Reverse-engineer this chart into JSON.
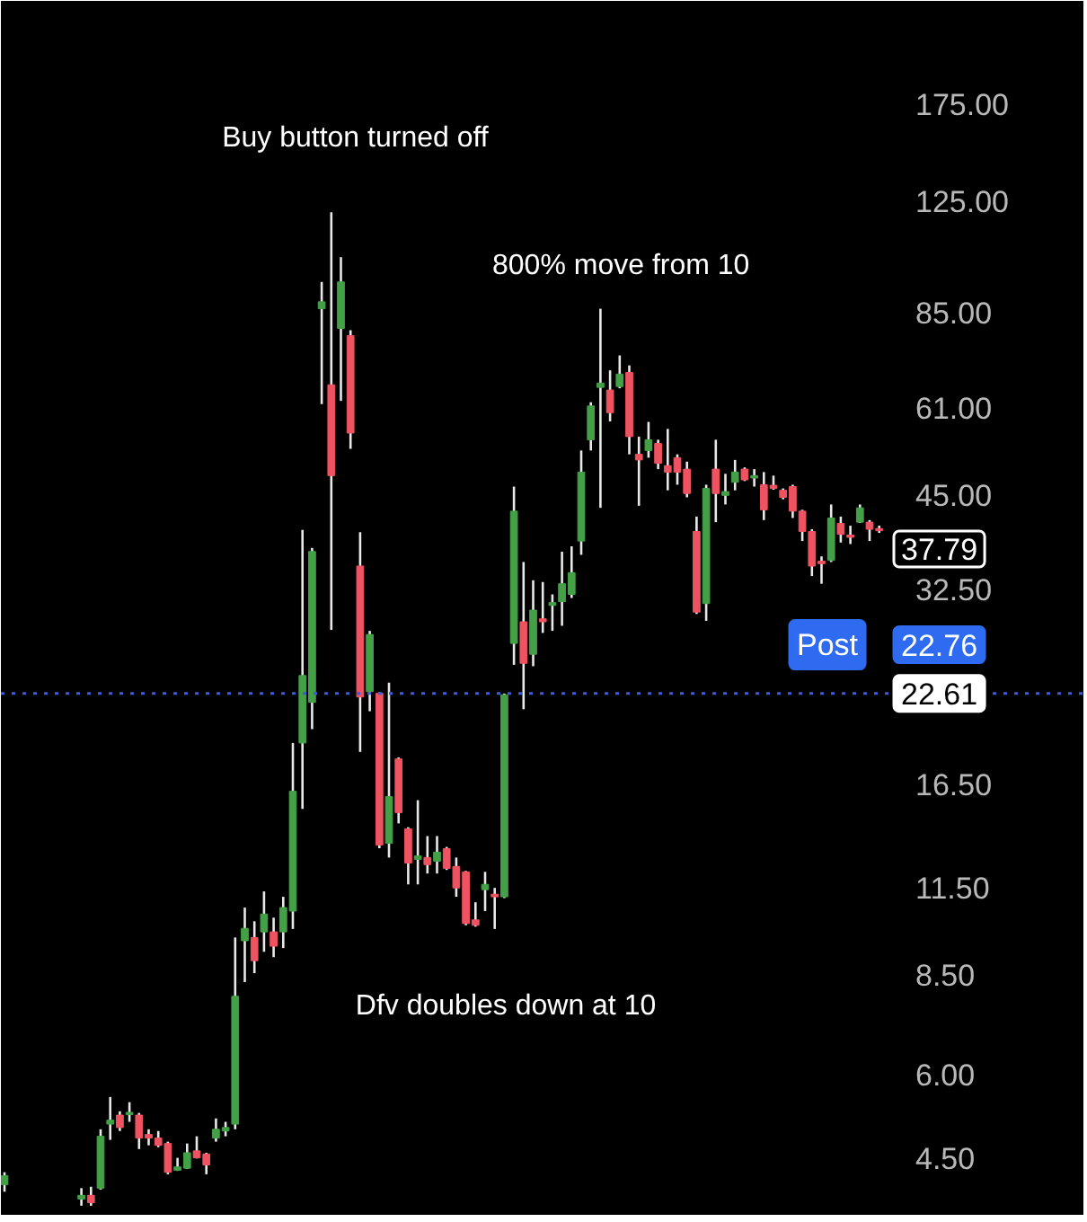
{
  "chart_data": {
    "type": "candlestick",
    "log": true,
    "categories": [
      null,
      null,
      null,
      null,
      null,
      null,
      null,
      null,
      null,
      null,
      null,
      null,
      null,
      null,
      null,
      null,
      null,
      null,
      null,
      null,
      null,
      null,
      null,
      null,
      null,
      null,
      null,
      null,
      null,
      null,
      null,
      null,
      null,
      null,
      null,
      null,
      null,
      null,
      null,
      null,
      null,
      null,
      null,
      null,
      null,
      null,
      null,
      null,
      null,
      null,
      null,
      null,
      null,
      null,
      null,
      null,
      null,
      null,
      null,
      null,
      null,
      null,
      null,
      null,
      null,
      null,
      null,
      null,
      null,
      null,
      null,
      null,
      null,
      null,
      null,
      null,
      null,
      null,
      null,
      null,
      null,
      null,
      null,
      null,
      null,
      null,
      null,
      null,
      null,
      null,
      null,
      null
    ],
    "ohlc": [
      [
        4.1,
        4.28,
        4.0,
        4.23
      ],
      null,
      null,
      null,
      null,
      null,
      null,
      null,
      [
        3.9,
        4.05,
        3.81,
        3.95
      ],
      [
        3.95,
        4.07,
        3.81,
        3.85
      ],
      [
        4.05,
        4.97,
        4.03,
        4.85
      ],
      [
        5.06,
        5.56,
        4.79,
        5.13
      ],
      [
        5.22,
        5.29,
        4.94,
        5.0
      ],
      [
        5.23,
        5.46,
        5.1,
        5.27
      ],
      [
        5.22,
        5.26,
        4.64,
        4.82
      ],
      [
        4.88,
        4.97,
        4.7,
        4.82
      ],
      [
        4.82,
        4.94,
        4.67,
        4.7
      ],
      [
        4.73,
        4.76,
        4.25,
        4.28
      ],
      [
        4.31,
        4.5,
        4.3,
        4.36
      ],
      [
        4.34,
        4.73,
        4.33,
        4.58
      ],
      [
        4.61,
        4.85,
        4.49,
        4.5
      ],
      [
        4.56,
        4.58,
        4.25,
        4.39
      ],
      [
        4.82,
        5.16,
        4.76,
        4.97
      ],
      [
        4.94,
        5.1,
        4.85,
        5.0
      ],
      [
        5.06,
        9.68,
        4.97,
        7.89
      ],
      [
        9.57,
        10.74,
        8.29,
        9.99
      ],
      [
        9.68,
        10.24,
        8.55,
        8.93
      ],
      [
        9.87,
        11.36,
        9.21,
        10.5
      ],
      [
        9.87,
        10.37,
        9.04,
        9.39
      ],
      [
        9.87,
        11.15,
        9.33,
        10.74
      ],
      [
        10.61,
        19.03,
        9.97,
        16.09
      ],
      [
        19.03,
        39.9,
        15.13,
        24.06
      ],
      [
        21.92,
        37.49,
        19.97,
        37.03
      ],
      [
        86.1,
        94.5,
        61.8,
        88.2
      ],
      [
        66.1,
        120.4,
        28.2,
        48.2
      ],
      [
        80.4,
        103.0,
        62.5,
        94.5
      ],
      [
        78.4,
        79.9,
        52.9,
        55.9
      ],
      [
        35.2,
        39.6,
        18.45,
        22.33
      ],
      [
        22.75,
        28.1,
        21.25,
        27.75
      ],
      [
        22.61,
        22.7,
        13.2,
        13.35
      ],
      [
        13.43,
        23.47,
        12.78,
        15.8
      ],
      [
        18.0,
        18.1,
        14.39,
        14.94
      ],
      [
        14.12,
        14.2,
        11.64,
        12.54
      ],
      [
        12.7,
        15.6,
        11.64,
        12.85
      ],
      [
        12.78,
        13.77,
        12.09,
        12.47
      ],
      [
        12.62,
        13.77,
        12.09,
        13.02
      ],
      [
        13.18,
        13.26,
        12.24,
        12.31
      ],
      [
        12.39,
        12.78,
        11.15,
        11.5
      ],
      [
        12.16,
        12.2,
        10.1,
        10.16
      ],
      [
        10.29,
        10.94,
        10.05,
        10.1
      ],
      [
        11.43,
        12.16,
        10.61,
        11.64
      ],
      [
        11.25,
        11.5,
        9.97,
        11.15
      ],
      [
        11.15,
        22.6,
        11.1,
        22.5
      ],
      [
        26.9,
        46.4,
        24.97,
        42.6
      ],
      [
        29.0,
        35.7,
        21.4,
        25.1
      ],
      [
        25.9,
        33.5,
        24.85,
        30.2
      ],
      [
        29.3,
        33.3,
        27.9,
        29.0
      ],
      [
        30.7,
        31.9,
        28.1,
        31.0
      ],
      [
        31.1,
        37.0,
        28.6,
        33.1
      ],
      [
        31.9,
        37.7,
        31.5,
        34.4
      ],
      [
        38.4,
        52.6,
        36.6,
        48.8
      ],
      [
        54.6,
        62.2,
        52.6,
        61.4
      ],
      [
        65.5,
        86.1,
        43.1,
        66.5
      ],
      [
        64.9,
        69.5,
        58.2,
        60.0
      ],
      [
        65.7,
        73.2,
        65.3,
        68.6
      ],
      [
        69.0,
        70.7,
        51.9,
        55.2
      ],
      [
        51.9,
        55.2,
        43.4,
        50.9
      ],
      [
        52.6,
        58.1,
        51.3,
        54.6
      ],
      [
        53.9,
        54.6,
        49.3,
        50.3
      ],
      [
        49.9,
        56.7,
        45.8,
        48.8
      ],
      [
        51.3,
        51.9,
        46.7,
        48.8
      ],
      [
        49.3,
        50.6,
        44.7,
        45.3
      ],
      [
        39.7,
        41.8,
        29.8,
        30.0
      ],
      [
        30.9,
        46.7,
        29.1,
        46.1
      ],
      [
        49.3,
        54.6,
        41.0,
        45.3
      ],
      [
        45.0,
        48.5,
        43.6,
        45.6
      ],
      [
        47.1,
        50.9,
        45.8,
        48.8
      ],
      [
        49.3,
        49.6,
        47.3,
        47.5
      ],
      [
        47.8,
        49.3,
        46.4,
        48.2
      ],
      [
        46.7,
        48.8,
        41.3,
        42.8
      ],
      [
        46.6,
        48.2,
        45.9,
        46.1
      ],
      [
        45.8,
        46.1,
        44.4,
        44.7
      ],
      [
        46.4,
        46.7,
        41.6,
        42.6
      ],
      [
        42.6,
        42.8,
        38.4,
        39.7
      ],
      [
        39.7,
        40.0,
        34.0,
        35.2
      ],
      [
        35.8,
        36.4,
        33.1,
        35.5
      ],
      [
        35.9,
        43.6,
        35.7,
        41.6
      ],
      [
        40.8,
        41.8,
        38.2,
        39.3
      ],
      [
        39.2,
        40.5,
        38.0,
        38.9
      ],
      [
        41.0,
        43.6,
        40.9,
        43.1
      ],
      [
        41.0,
        41.3,
        38.4,
        40.0
      ],
      [
        40.1,
        40.5,
        39.5,
        39.8
      ]
    ],
    "colors": [
      "#43a047",
      null,
      null,
      null,
      null,
      null,
      null,
      null,
      "#43a047",
      "#ef5361",
      "#43a047",
      "#43a047",
      "#ef5361",
      "#43a047",
      "#ef5361",
      "#ef5361",
      "#ef5361",
      "#ef5361",
      "#43a047",
      "#43a047",
      "#ef5361",
      "#ef5361",
      "#43a047",
      "#43a047",
      "#43a047",
      "#43a047",
      "#ef5361",
      "#43a047",
      "#ef5361",
      "#43a047",
      "#43a047",
      "#43a047",
      "#43a047",
      "#43a047",
      "#ef5361",
      "#43a047",
      "#ef5361",
      "#ef5361",
      "#43a047",
      "#ef5361",
      "#43a047",
      "#ef5361",
      "#ef5361",
      "#43a047",
      "#ef5361",
      "#43a047",
      "#ef5361",
      "#ef5361",
      "#ef5361",
      "#ef5361",
      "#43a047",
      "#ef5361",
      "#43a047",
      "#43a047",
      "#ef5361",
      "#43a047",
      "#ef5361",
      "#43a047",
      "#43a047",
      "#43a047",
      "#43a047",
      "#43a047",
      "#43a047",
      "#ef5361",
      "#43a047",
      "#ef5361",
      "#ef5361",
      "#43a047",
      "#ef5361",
      "#ef5361",
      "#ef5361",
      "#ef5361",
      "#ef5361",
      "#43a047",
      "#ef5361",
      "#43a047",
      "#43a047",
      "#ef5361",
      "#43a047",
      "#ef5361",
      "#ef5361",
      "#ef5361",
      "#ef5361",
      "#ef5361",
      "#ef5361",
      "#ef5361",
      "#43a047",
      "#ef5361",
      "#ef5361",
      "#43a047",
      "#ef5361",
      "#ef5361"
    ],
    "ylim": [
      3.68,
      251
    ],
    "yticks": [
      {
        "value": 4.5,
        "label": "4.50"
      },
      {
        "value": 6,
        "label": "6.00"
      },
      {
        "value": 8.5,
        "label": "8.50"
      },
      {
        "value": 11.5,
        "label": "11.50"
      },
      {
        "value": 16.5,
        "label": "16.50"
      },
      {
        "value": 32.5,
        "label": "32.50"
      },
      {
        "value": 45,
        "label": "45.00"
      },
      {
        "value": 61,
        "label": "61.00"
      },
      {
        "value": 85,
        "label": "85.00"
      },
      {
        "value": 125,
        "label": "125.00"
      },
      {
        "value": 175,
        "label": "175.00"
      }
    ],
    "ref_lines": [
      {
        "axis": "y",
        "value": 22.61,
        "label": "22.61",
        "color": "#3c5bd8",
        "line_style": "dotted"
      }
    ],
    "annotations": [
      "Buy button turned off",
      "800% move from 10",
      "Dfv doubles down at 10",
      "37.79",
      {
        "text": "Post",
        "y": 22.76
      },
      {
        "text": "22.76",
        "y": 22.76
      }
    ]
  }
}
